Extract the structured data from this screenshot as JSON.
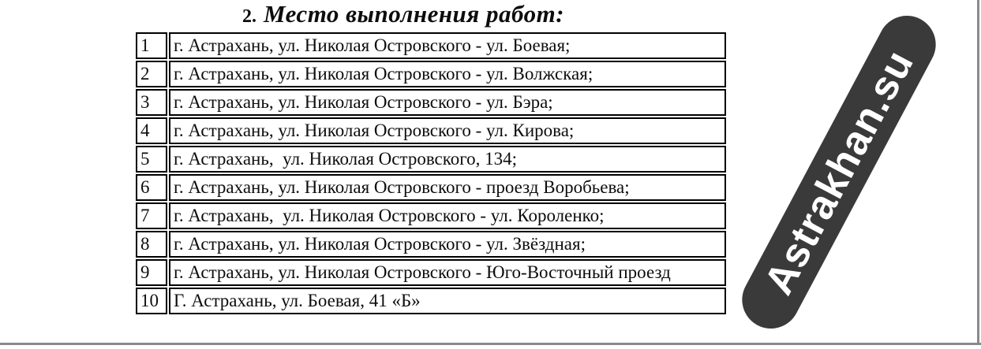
{
  "page": {
    "title": {
      "number": "2.",
      "text": "Место выполнения работ:"
    },
    "table": {
      "rows": [
        {
          "num": "1",
          "address": "г. Астрахань, ул. Николая Островского - ул. Боевая;"
        },
        {
          "num": "2",
          "address": "г. Астрахань, ул. Николая Островского - ул. Волжская;"
        },
        {
          "num": "3",
          "address": "г. Астрахань, ул. Николая Островского - ул. Бэра;"
        },
        {
          "num": "4",
          "address": "г. Астрахань, ул. Николая Островского - ул. Кирова;"
        },
        {
          "num": "5",
          "address": "г. Астрахань,  ул. Николая Островского, 134;"
        },
        {
          "num": "6",
          "address": "г. Астрахань, ул. Николая Островского - проезд Воробьева;"
        },
        {
          "num": "7",
          "address": "г. Астрахань,  ул. Николая Островского - ул. Короленко;"
        },
        {
          "num": "8",
          "address": "г. Астрахань, ул. Николая Островского - ул. Звёздная;"
        },
        {
          "num": "9",
          "address": "г. Астрахань, ул. Николая Островского - Юго-Восточный проезд"
        },
        {
          "num": "10",
          "address": "Г. Астрахань, ул. Боевая, 41 «Б»"
        }
      ]
    },
    "watermark": {
      "label": "Astrakhan.su"
    },
    "colors": {
      "badge_background": "#3a3a3a",
      "badge_text": "#ffffff",
      "table_border": "#000000",
      "frame_line": "#8a8a8a"
    }
  }
}
